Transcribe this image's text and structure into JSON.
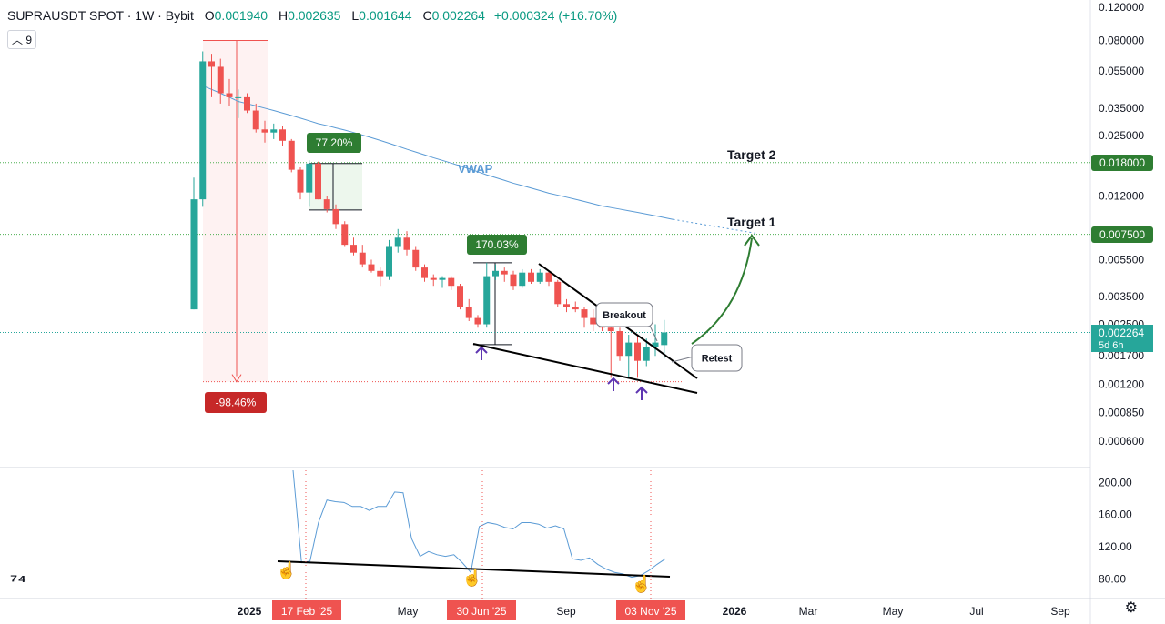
{
  "header": {
    "symbol": "SUPRAUSDT SPOT · 1W · Bybit",
    "open_label": "O",
    "open": "0.001940",
    "high_label": "H",
    "high": "0.002635",
    "low_label": "L",
    "low": "0.001644",
    "close_label": "C",
    "close": "0.002264",
    "change": "+0.000324 (+16.70%)",
    "indicator_count": "9"
  },
  "colors": {
    "up": "#26a69a",
    "down": "#ef5350",
    "vwap": "#5b9bd5",
    "green_label": "#2e7d32",
    "red_label": "#c62828"
  },
  "chart_data": [
    {
      "type": "candlestick",
      "y_scale": "log",
      "y_ticks": [
        "0.120000",
        "0.080000",
        "0.055000",
        "0.035000",
        "0.025000",
        "0.018000",
        "0.012000",
        "0.007500",
        "0.005500",
        "0.003500",
        "0.002500",
        "0.001700",
        "0.001200",
        "0.000850",
        "0.000600"
      ],
      "x_ticks": [
        "2025",
        "17 Feb '25",
        "May",
        "30 Jun '25",
        "Sep",
        "03 Nov '25",
        "2026",
        "Mar",
        "May",
        "Jul",
        "Sep"
      ],
      "candles": [
        {
          "o": 0.003,
          "h": 0.015,
          "l": 0.003,
          "c": 0.0115
        },
        {
          "o": 0.0115,
          "h": 0.07,
          "l": 0.0105,
          "c": 0.062
        },
        {
          "o": 0.062,
          "h": 0.068,
          "l": 0.04,
          "c": 0.058
        },
        {
          "o": 0.058,
          "h": 0.064,
          "l": 0.037,
          "c": 0.042
        },
        {
          "o": 0.042,
          "h": 0.05,
          "l": 0.036,
          "c": 0.04
        },
        {
          "o": 0.04,
          "h": 0.044,
          "l": 0.031,
          "c": 0.04
        },
        {
          "o": 0.04,
          "h": 0.042,
          "l": 0.033,
          "c": 0.034
        },
        {
          "o": 0.034,
          "h": 0.037,
          "l": 0.026,
          "c": 0.027
        },
        {
          "o": 0.027,
          "h": 0.03,
          "l": 0.023,
          "c": 0.026
        },
        {
          "o": 0.026,
          "h": 0.029,
          "l": 0.024,
          "c": 0.027
        },
        {
          "o": 0.027,
          "h": 0.028,
          "l": 0.022,
          "c": 0.0235
        },
        {
          "o": 0.0235,
          "h": 0.024,
          "l": 0.016,
          "c": 0.0165
        },
        {
          "o": 0.0165,
          "h": 0.017,
          "l": 0.0115,
          "c": 0.0125
        },
        {
          "o": 0.0125,
          "h": 0.0185,
          "l": 0.0105,
          "c": 0.0178
        },
        {
          "o": 0.0178,
          "h": 0.0182,
          "l": 0.0115,
          "c": 0.0115
        },
        {
          "o": 0.0115,
          "h": 0.012,
          "l": 0.0098,
          "c": 0.0102
        },
        {
          "o": 0.0102,
          "h": 0.0108,
          "l": 0.008,
          "c": 0.0085
        },
        {
          "o": 0.0085,
          "h": 0.0088,
          "l": 0.0065,
          "c": 0.0066
        },
        {
          "o": 0.0066,
          "h": 0.0072,
          "l": 0.0058,
          "c": 0.006
        },
        {
          "o": 0.006,
          "h": 0.0066,
          "l": 0.005,
          "c": 0.0052
        },
        {
          "o": 0.0052,
          "h": 0.0055,
          "l": 0.0047,
          "c": 0.0048
        },
        {
          "o": 0.0048,
          "h": 0.005,
          "l": 0.004,
          "c": 0.0045
        },
        {
          "o": 0.0045,
          "h": 0.007,
          "l": 0.0043,
          "c": 0.0065
        },
        {
          "o": 0.0065,
          "h": 0.008,
          "l": 0.006,
          "c": 0.0072
        },
        {
          "o": 0.0072,
          "h": 0.0078,
          "l": 0.0058,
          "c": 0.0062
        },
        {
          "o": 0.0062,
          "h": 0.0065,
          "l": 0.0048,
          "c": 0.005
        },
        {
          "o": 0.005,
          "h": 0.0052,
          "l": 0.0042,
          "c": 0.0044
        },
        {
          "o": 0.0044,
          "h": 0.0046,
          "l": 0.004,
          "c": 0.0043
        },
        {
          "o": 0.0043,
          "h": 0.0045,
          "l": 0.0039,
          "c": 0.0044
        },
        {
          "o": 0.0044,
          "h": 0.0045,
          "l": 0.0038,
          "c": 0.004
        },
        {
          "o": 0.004,
          "h": 0.0041,
          "l": 0.003,
          "c": 0.0031
        },
        {
          "o": 0.0031,
          "h": 0.0034,
          "l": 0.0026,
          "c": 0.0027
        },
        {
          "o": 0.0027,
          "h": 0.0028,
          "l": 0.0024,
          "c": 0.0025
        },
        {
          "o": 0.0025,
          "h": 0.0053,
          "l": 0.0024,
          "c": 0.0045
        },
        {
          "o": 0.0045,
          "h": 0.0052,
          "l": 0.0043,
          "c": 0.0048
        },
        {
          "o": 0.0048,
          "h": 0.005,
          "l": 0.0042,
          "c": 0.0046
        },
        {
          "o": 0.0046,
          "h": 0.0048,
          "l": 0.0038,
          "c": 0.004
        },
        {
          "o": 0.004,
          "h": 0.0049,
          "l": 0.0039,
          "c": 0.0047
        },
        {
          "o": 0.0047,
          "h": 0.0049,
          "l": 0.0041,
          "c": 0.0042
        },
        {
          "o": 0.0042,
          "h": 0.0049,
          "l": 0.0041,
          "c": 0.0047
        },
        {
          "o": 0.0047,
          "h": 0.0048,
          "l": 0.004,
          "c": 0.0042
        },
        {
          "o": 0.0042,
          "h": 0.0043,
          "l": 0.0031,
          "c": 0.0032
        },
        {
          "o": 0.0032,
          "h": 0.0034,
          "l": 0.0029,
          "c": 0.0031
        },
        {
          "o": 0.0031,
          "h": 0.0033,
          "l": 0.0029,
          "c": 0.003
        },
        {
          "o": 0.003,
          "h": 0.0031,
          "l": 0.0024,
          "c": 0.0027
        },
        {
          "o": 0.0027,
          "h": 0.003,
          "l": 0.0023,
          "c": 0.0025
        },
        {
          "o": 0.0025,
          "h": 0.0028,
          "l": 0.0023,
          "c": 0.0024
        },
        {
          "o": 0.0024,
          "h": 0.0026,
          "l": 0.0013,
          "c": 0.0023
        },
        {
          "o": 0.0023,
          "h": 0.0024,
          "l": 0.0016,
          "c": 0.0017
        },
        {
          "o": 0.0017,
          "h": 0.0022,
          "l": 0.0013,
          "c": 0.002
        },
        {
          "o": 0.002,
          "h": 0.0022,
          "l": 0.0013,
          "c": 0.0016
        },
        {
          "o": 0.0016,
          "h": 0.0021,
          "l": 0.0015,
          "c": 0.0019
        },
        {
          "o": 0.0019,
          "h": 0.0025,
          "l": 0.0017,
          "c": 0.002
        },
        {
          "o": 0.00194,
          "h": 0.002635,
          "l": 0.001644,
          "c": 0.002264
        }
      ],
      "vwap_label": "VWAP",
      "vwap": [
        0.046,
        0.044,
        0.042,
        0.04,
        0.038,
        0.037,
        0.036,
        0.035,
        0.034,
        0.033,
        0.032,
        0.031,
        0.03,
        0.029,
        0.0283,
        0.0275,
        0.0268,
        0.026,
        0.0252,
        0.0244,
        0.0236,
        0.0228,
        0.022,
        0.0212,
        0.0205,
        0.0198,
        0.0191,
        0.0185,
        0.0179,
        0.0173,
        0.0167,
        0.0161,
        0.0155,
        0.015,
        0.0145,
        0.014,
        0.0136,
        0.0132,
        0.0128,
        0.0124,
        0.0121,
        0.0118,
        0.0115,
        0.0112,
        0.0109,
        0.0106,
        0.0104,
        0.0102,
        0.01,
        0.0098,
        0.0096,
        0.0094,
        0.0092,
        0.009
      ],
      "annotations": {
        "drop_label": "-98.46%",
        "gain1_label": "77.20%",
        "gain2_label": "170.03%",
        "breakout_label": "Breakout",
        "retest_label": "Retest",
        "target1_label": "Target 1",
        "target1_value": "0.007500",
        "target2_label": "Target 2",
        "target2_value": "0.018000",
        "last_price": "0.002264",
        "countdown": "5d 6h"
      }
    },
    {
      "type": "line",
      "name": "oscillator",
      "y_ticks": [
        "200.00",
        "160.00",
        "120.00",
        "80.00"
      ],
      "ylim": [
        60,
        215
      ],
      "values": [
        215,
        100,
        102,
        150,
        178,
        176,
        175,
        170,
        170,
        165,
        170,
        170,
        188,
        187,
        130,
        108,
        114,
        110,
        108,
        110,
        100,
        88,
        145,
        150,
        148,
        144,
        142,
        150,
        150,
        148,
        143,
        146,
        142,
        105,
        103,
        106,
        98,
        92,
        88,
        86,
        82,
        84,
        90,
        98,
        105
      ]
    }
  ]
}
